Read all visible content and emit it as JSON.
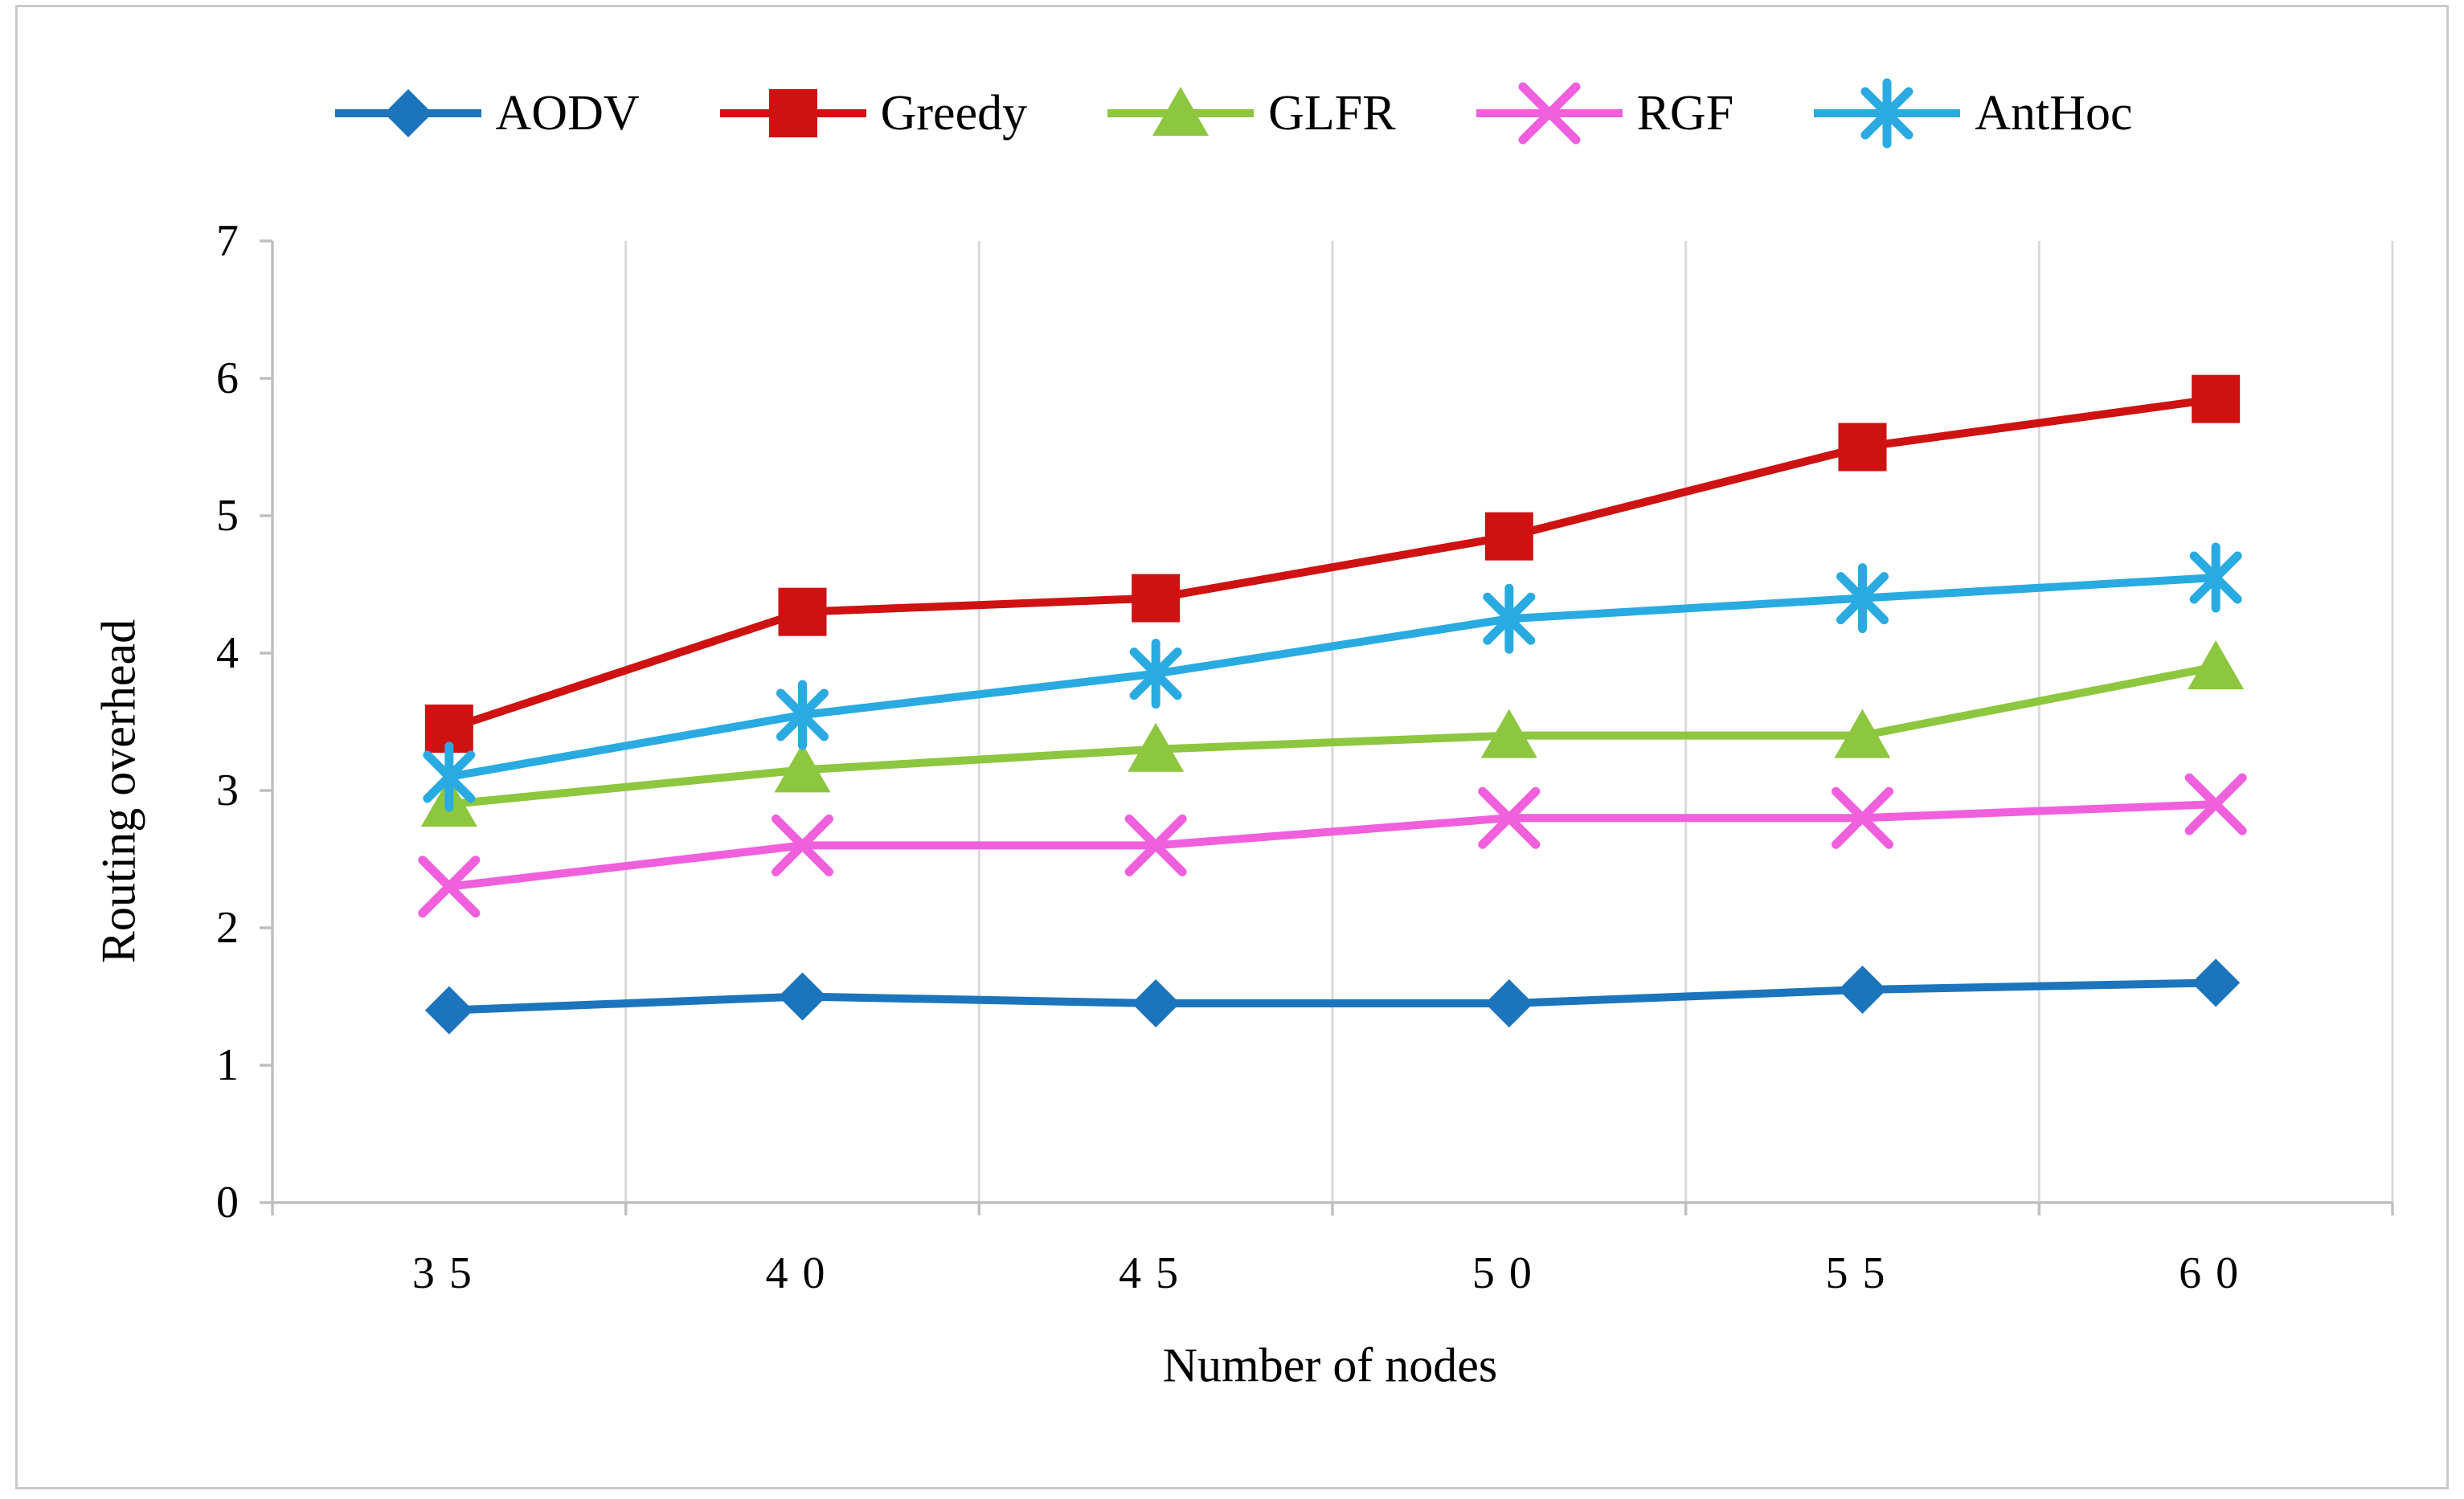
{
  "chart_data": {
    "type": "line",
    "categories": [
      "35",
      "40",
      "45",
      "50",
      "55",
      "60"
    ],
    "series": [
      {
        "name": "AODV",
        "marker": "diamond",
        "color": "#1c75bc",
        "values": [
          1.4,
          1.5,
          1.45,
          1.45,
          1.55,
          1.6
        ]
      },
      {
        "name": "Greedy",
        "marker": "square",
        "color": "#ce1212",
        "values": [
          3.45,
          4.3,
          4.4,
          4.85,
          5.5,
          5.85
        ]
      },
      {
        "name": "GLFR",
        "marker": "triangle",
        "color": "#8dc63f",
        "values": [
          2.9,
          3.15,
          3.3,
          3.4,
          3.4,
          3.9
        ]
      },
      {
        "name": "RGF",
        "marker": "x",
        "color": "#f060dd",
        "values": [
          2.3,
          2.6,
          2.6,
          2.8,
          2.8,
          2.9
        ]
      },
      {
        "name": "AntHoc",
        "marker": "asterisk",
        "color": "#29abe2",
        "values": [
          3.1,
          3.55,
          3.85,
          4.25,
          4.4,
          4.55
        ]
      }
    ],
    "title": "",
    "xlabel": "Number of nodes",
    "ylabel": "Routing overhead",
    "ylim": [
      0,
      7
    ],
    "y_ticks": [
      "0",
      "1",
      "2",
      "3",
      "4",
      "5",
      "6",
      "7"
    ],
    "legend_position": "top",
    "grid": "vertical-only",
    "grid_color": "#d9d9d9",
    "axis_color": "#bfbfbf",
    "text_color": "#000000"
  }
}
